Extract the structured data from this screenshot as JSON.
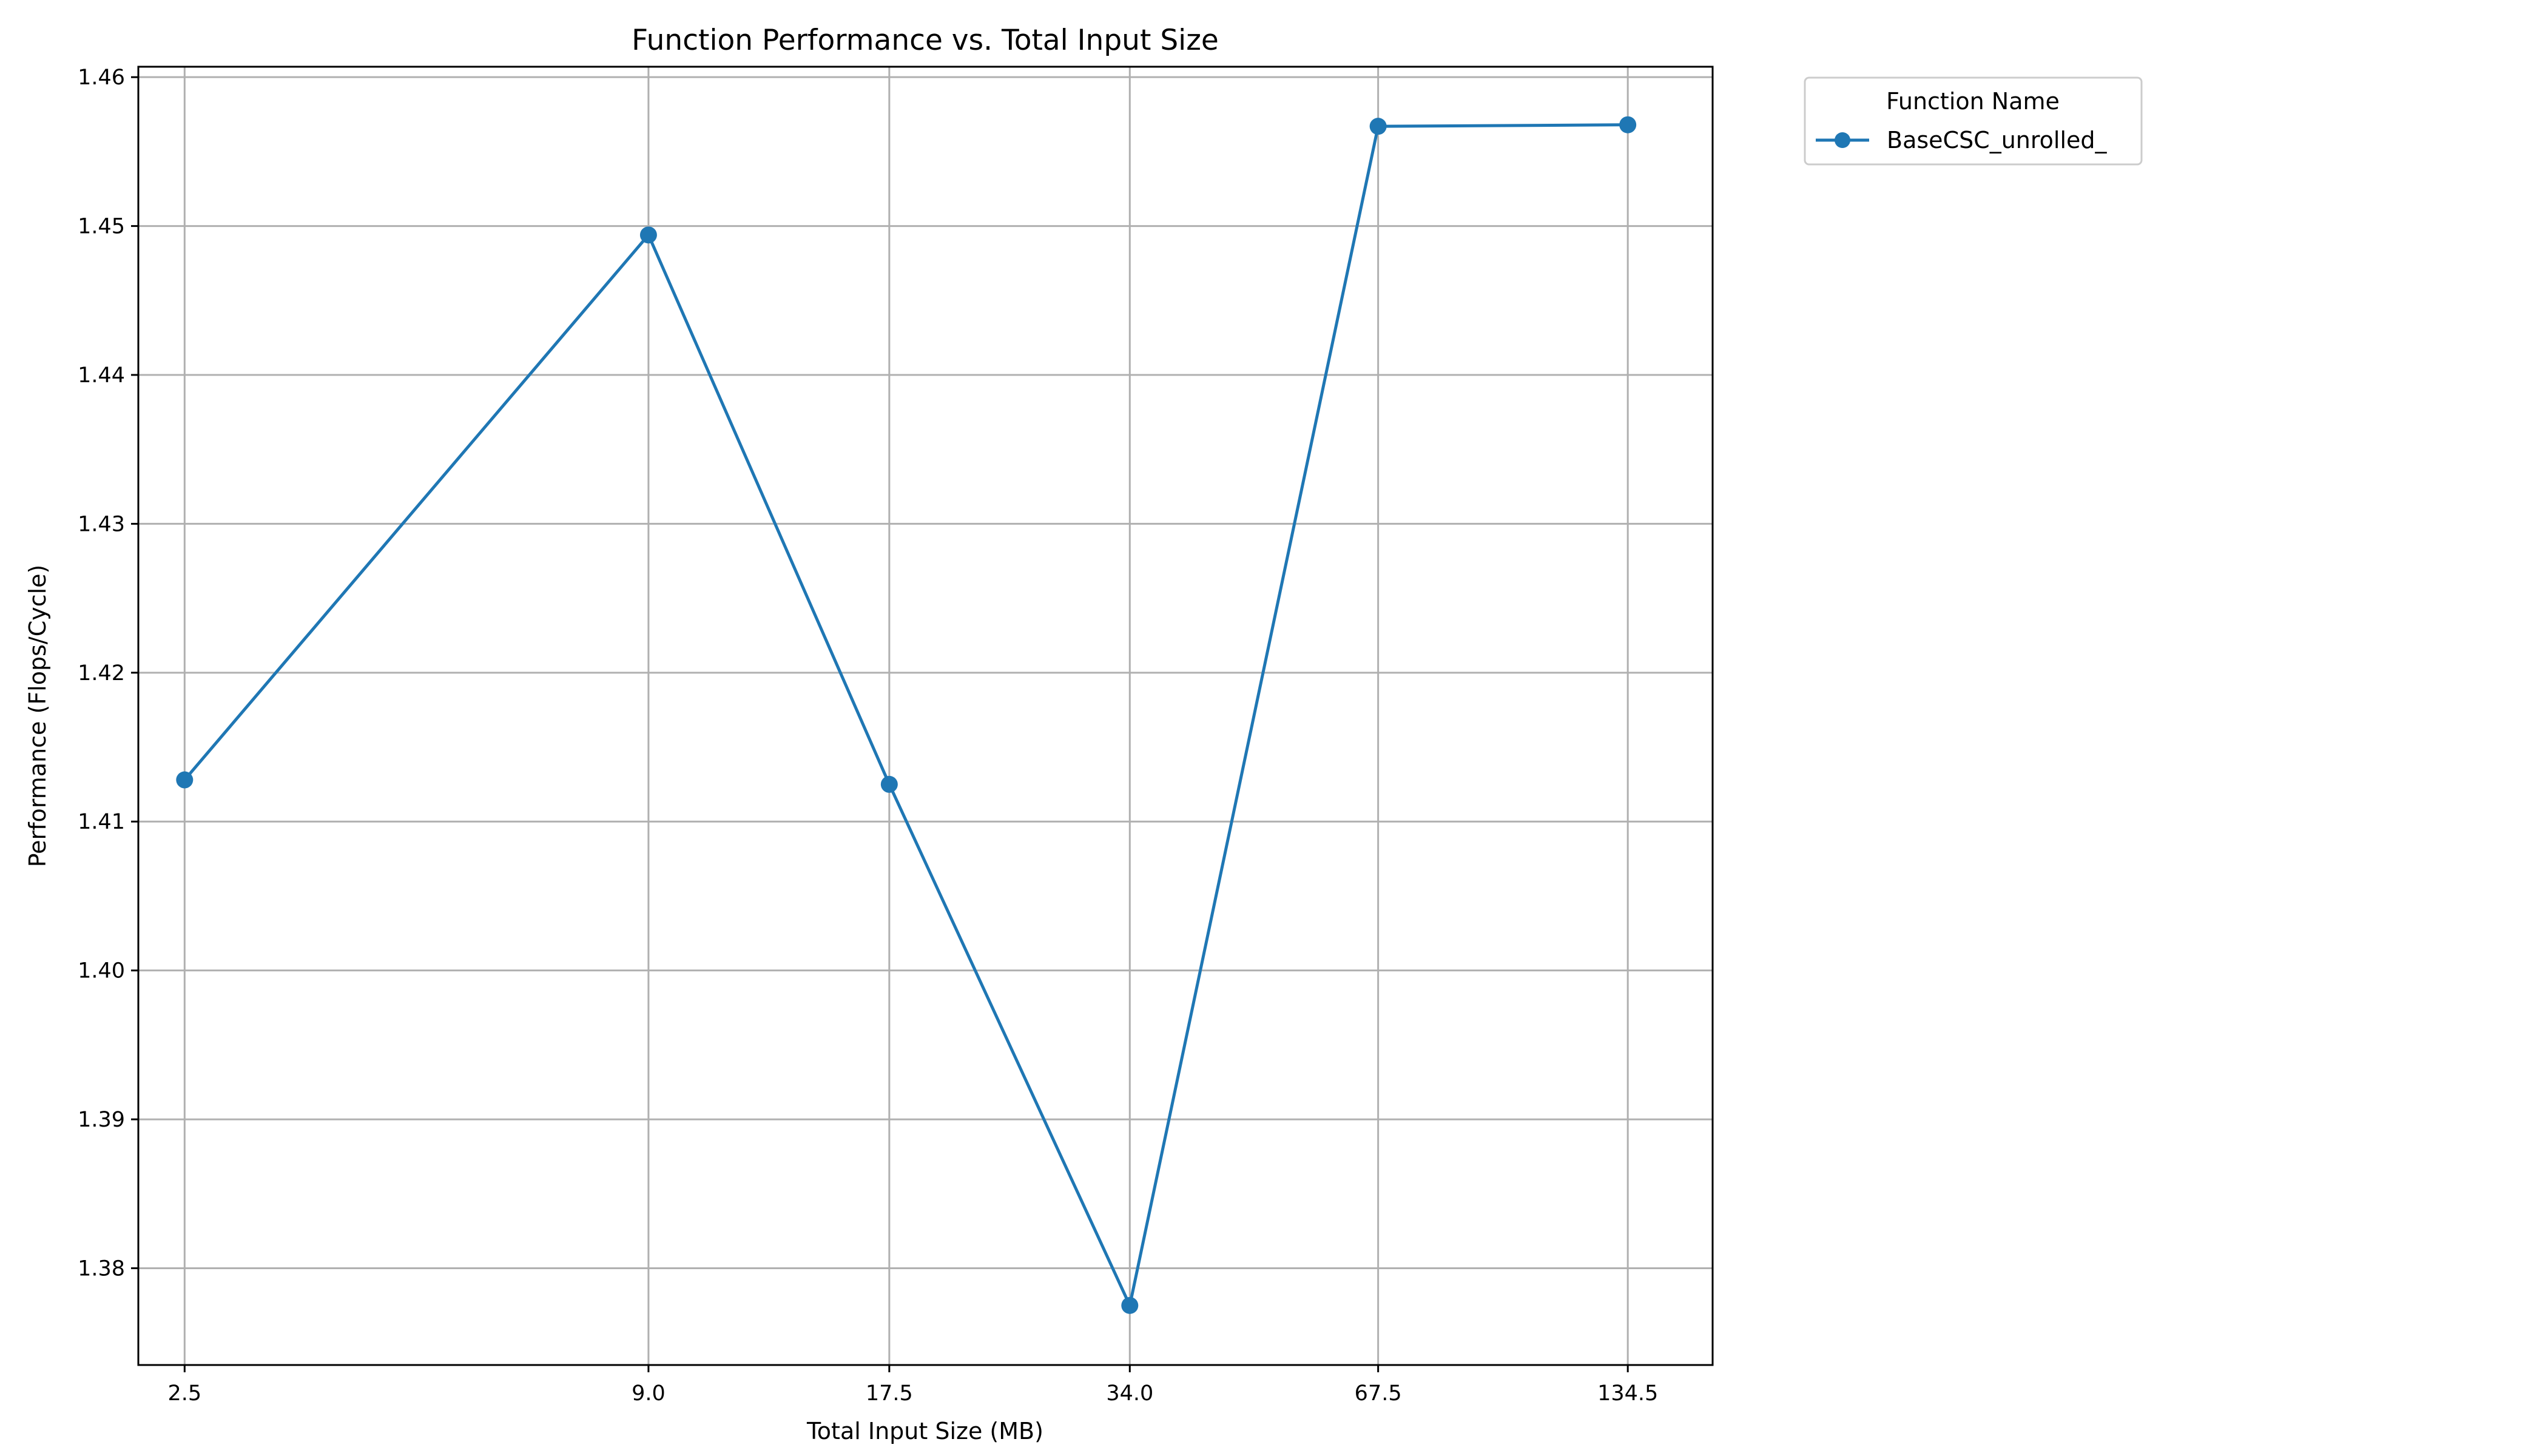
{
  "chart_data": {
    "type": "line",
    "title": "Function Performance vs. Total Input Size",
    "xlabel": "Total Input Size (MB)",
    "ylabel": "Performance (Flops/Cycle)",
    "x_scale": "log",
    "x": [
      2.5,
      9.0,
      17.5,
      34.0,
      67.5,
      134.5
    ],
    "x_tick_labels": [
      "2.5",
      "9.0",
      "17.5",
      "34.0",
      "67.5",
      "134.5"
    ],
    "xlim": [
      2.2,
      170
    ],
    "ylim": [
      1.3735,
      1.4607
    ],
    "y_ticks": [
      1.38,
      1.39,
      1.4,
      1.41,
      1.42,
      1.43,
      1.44,
      1.45,
      1.46
    ],
    "y_tick_labels": [
      "1.38",
      "1.39",
      "1.40",
      "1.41",
      "1.42",
      "1.43",
      "1.44",
      "1.45",
      "1.46"
    ],
    "grid": true,
    "legend_placement": "outside-top-right",
    "legend_title": "Function Name",
    "series": [
      {
        "name": "BaseCSC_unrolled_",
        "color": "#1f77b4",
        "marker": "circle",
        "values": [
          1.4128,
          1.4494,
          1.4125,
          1.3775,
          1.4567,
          1.4568
        ]
      }
    ]
  }
}
